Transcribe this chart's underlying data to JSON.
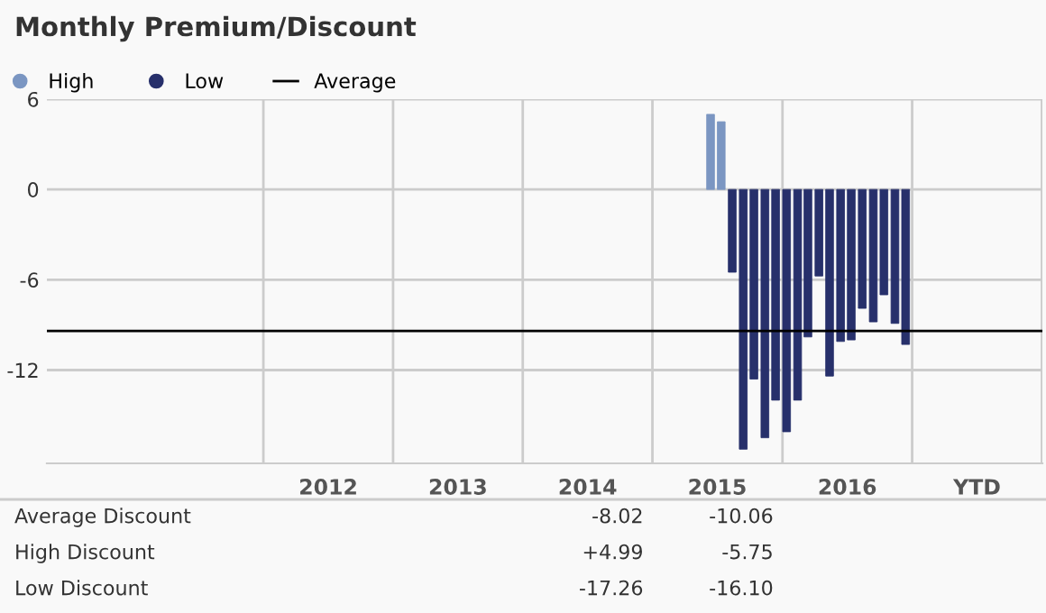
{
  "chart_data": {
    "type": "bar",
    "title": "Monthly Premium/Discount",
    "x": [
      "2015-06",
      "2015-07",
      "2015-08",
      "2015-09",
      "2015-10",
      "2015-11",
      "2015-12",
      "2016-01",
      "2016-02",
      "2016-03",
      "2016-04",
      "2016-05",
      "2016-06",
      "2016-07",
      "2016-08",
      "2016-09",
      "2016-10",
      "2016-11",
      "2016-12"
    ],
    "series": [
      {
        "name": "High",
        "color": "#7b96c2",
        "values": [
          4.99,
          4.5,
          null,
          null,
          null,
          null,
          null,
          null,
          null,
          null,
          null,
          null,
          null,
          null,
          null,
          null,
          null,
          null,
          null
        ]
      },
      {
        "name": "Low",
        "color": "#27306b",
        "values": [
          null,
          null,
          -5.5,
          -17.26,
          -12.6,
          -16.5,
          -14.0,
          -16.1,
          -14.0,
          -9.8,
          -5.75,
          -12.4,
          -10.1,
          -10.0,
          -7.9,
          -8.8,
          -7.0,
          -8.9,
          -10.3
        ]
      }
    ],
    "xlim": [
      "2010-05",
      "2018-01"
    ],
    "xticks": [
      {
        "value": "2012-07",
        "label": "2012"
      },
      {
        "value": "2013-07",
        "label": "2013"
      },
      {
        "value": "2014-07",
        "label": "2014"
      },
      {
        "value": "2015-07",
        "label": "2015"
      },
      {
        "value": "2016-07",
        "label": "2016"
      },
      {
        "value": "2017-07",
        "label": "YTD"
      }
    ],
    "ylim": [
      -18.2,
      6
    ],
    "yticks": [
      6,
      0,
      -6,
      -12
    ],
    "ref_lines": [
      {
        "axis": "y",
        "value": -9.4,
        "label": "Average",
        "color": "#000000",
        "line_style": "solid"
      }
    ],
    "grid": "y",
    "legend": "top left",
    "annotations": [
      "Average Discount",
      "-8.02",
      "-10.06",
      "High Discount",
      "+4.99",
      "-5.75",
      "Low Discount",
      "-17.26",
      "-16.10"
    ]
  }
}
